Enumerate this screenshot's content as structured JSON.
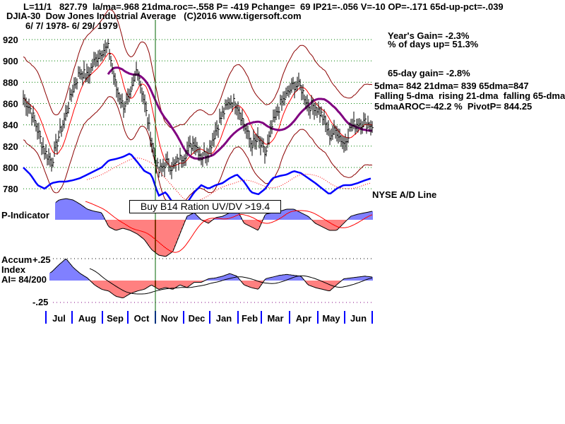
{
  "header": {
    "line1": "L=11/1   827.79  la/ma=.968 21dma.roc=-.558 P= -419 Pchange=  69 IP21=-.056 V=-10 OP=-.171 65d-up-pct=-.039",
    "line2": "DJIA-30  Dow Jones Industrial Average   (C)2016 www.tigersoft.com",
    "date_range": "6/ 7/ 1978- 6/ 29/ 1979"
  },
  "stats": {
    "years_gain": "Year's Gain= -2.3%",
    "pct_days_up": "% of days up= 51.3%",
    "gain_65day": "65-day gain= -2.8%",
    "dmas": "5dma= 842 21dma= 839 65dma=847",
    "trend": "Falling 5-dma  rising 21-dma  falling 65-dma",
    "aroc": "5dmaAROC=-42.2 %  PivotP= 844.25"
  },
  "signal_tooltip": "Buy B14 Ration UV/DV >19.4",
  "colors": {
    "grid": "#008000",
    "ad_line": "#0000ff",
    "band": "#8b0000",
    "ma21": "#ff0000",
    "ma65": "#800080",
    "pos": "#0000ff",
    "neg": "#ff0000",
    "signal": "#006400"
  },
  "chart_data": {
    "type": "line",
    "title": "DJIA-30 Dow Jones Industrial Average",
    "price_axis": {
      "ticks": [
        "920",
        "900",
        "880",
        "860",
        "840",
        "820",
        "800",
        "780"
      ],
      "ylim": [
        780,
        920
      ]
    },
    "months": [
      "Jul",
      "Aug",
      "Sep",
      "Oct",
      "Nov",
      "Dec",
      "Jan",
      "Feb",
      "Mar",
      "Apr",
      "May",
      "Jun"
    ],
    "weekly_close": [
      865,
      855,
      835,
      815,
      805,
      830,
      850,
      875,
      890,
      885,
      900,
      910,
      912,
      875,
      858,
      865,
      895,
      860,
      825,
      795,
      805,
      800,
      808,
      815,
      825,
      810,
      815,
      835,
      850,
      862,
      860,
      840,
      822,
      825,
      812,
      840,
      858,
      868,
      878,
      875,
      858,
      858,
      848,
      830,
      835,
      822,
      838,
      842,
      842,
      840
    ],
    "ad_line_label": "NYSE A/D Line",
    "ad_line": [
      0,
      -10,
      -25,
      -30,
      -22,
      -20,
      -20,
      -18,
      -15,
      -10,
      -5,
      0,
      10,
      12,
      15,
      20,
      8,
      -5,
      -10,
      -40,
      -35,
      -50,
      -60,
      -50,
      -35,
      -25,
      -30,
      -25,
      -22,
      -15,
      -10,
      -20,
      -35,
      -38,
      -30,
      -15,
      -12,
      -10,
      -5,
      -8,
      -15,
      -22,
      -30,
      -38,
      -30,
      -25,
      -25,
      -22,
      -18,
      -15
    ],
    "p_indicator_label": "P-Indicator",
    "p_indicator": [
      -15,
      -5,
      5,
      15,
      20,
      28,
      30,
      28,
      22,
      15,
      12,
      10,
      -10,
      -15,
      -12,
      -15,
      -20,
      -28,
      -42,
      -50,
      -52,
      -45,
      -20,
      5,
      10,
      0,
      -5,
      3,
      5,
      10,
      15,
      -5,
      -10,
      -15,
      8,
      10,
      12,
      15,
      15,
      10,
      5,
      -5,
      -10,
      -15,
      -15,
      -5,
      5,
      8,
      10,
      12
    ],
    "accum_label": "Accum",
    "accum_label2": "Index",
    "accum_value": "AI= 84/200",
    "accum_ticks": [
      "+.25",
      "-.25"
    ],
    "accum_index": [
      -0.2,
      -0.1,
      -0.02,
      0.05,
      0.1,
      0.18,
      0.25,
      0.15,
      0.08,
      0.03,
      -0.05,
      -0.1,
      -0.12,
      -0.18,
      -0.2,
      -0.15,
      -0.12,
      -0.1,
      -0.05,
      -0.1,
      -0.08,
      -0.1,
      -0.05,
      -0.08,
      -0.02,
      -0.02,
      0.02,
      0.03,
      0.05,
      0.08,
      0.05,
      -0.05,
      -0.08,
      -0.1,
      0.02,
      0.04,
      0.06,
      0.07,
      0.06,
      0.05,
      -0.05,
      -0.08,
      -0.1,
      -0.12,
      -0.05,
      0.02,
      0.03,
      0.04,
      0.05,
      0.04
    ]
  }
}
